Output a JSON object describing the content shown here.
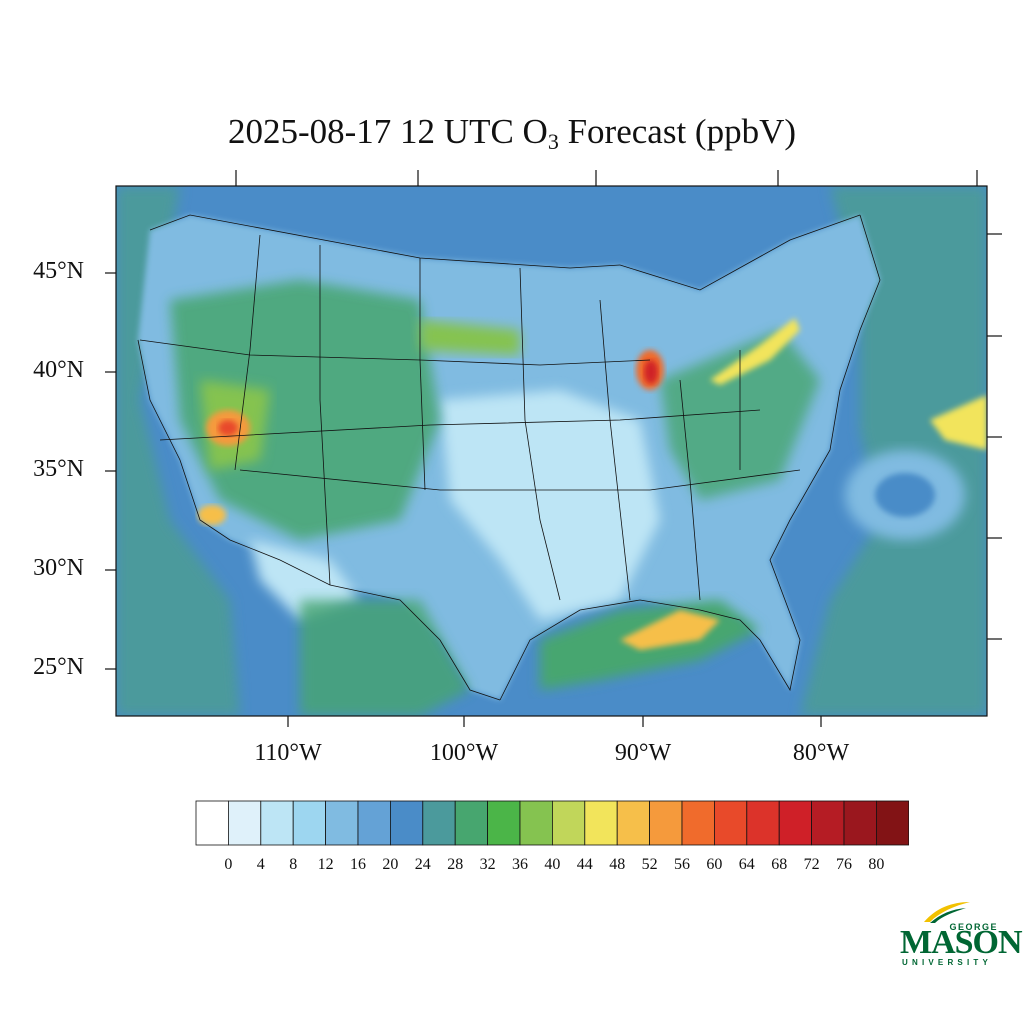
{
  "title": {
    "prefix": "2025-08-17 12 UTC O",
    "subscript": "3",
    "suffix": " Forecast (ppbV)"
  },
  "axes": {
    "lat_labels": [
      "45°N",
      "40°N",
      "35°N",
      "30°N",
      "25°N"
    ],
    "lon_labels": [
      "110°W",
      "100°W",
      "90°W",
      "80°W"
    ]
  },
  "colorbar": {
    "labels": [
      "0",
      "4",
      "8",
      "12",
      "16",
      "20",
      "24",
      "28",
      "32",
      "36",
      "40",
      "44",
      "48",
      "52",
      "56",
      "60",
      "64",
      "68",
      "72",
      "76",
      "80"
    ],
    "colors": [
      "#ffffff",
      "#dff1fa",
      "#bde5f5",
      "#9dd6f0",
      "#80bbe1",
      "#64a2d6",
      "#4a8cc8",
      "#4b9a9c",
      "#47a66f",
      "#4bb548",
      "#85c350",
      "#c1d65a",
      "#f2e45b",
      "#f6bf4a",
      "#f59a3c",
      "#f06b2c",
      "#e84a2a",
      "#dc332a",
      "#cf2028",
      "#b51c24",
      "#9a171e",
      "#821315"
    ]
  },
  "map_fields": {
    "background_ppbv": 22,
    "land_ppbv": 14,
    "hotspots": [
      {
        "region": "Southern California / Great Basin",
        "peak_ppbv": 62
      },
      {
        "region": "Lake Michigan shore",
        "peak_ppbv": 70
      },
      {
        "region": "Lake Erie",
        "peak_ppbv": 50
      },
      {
        "region": "Gulf of Mexico coast",
        "peak_ppbv": 52
      },
      {
        "region": "Western Atlantic",
        "peak_ppbv": 48
      }
    ]
  },
  "logo": {
    "line1": "GEORGE",
    "line2": "MASON",
    "line3": "UNIVERSITY"
  }
}
